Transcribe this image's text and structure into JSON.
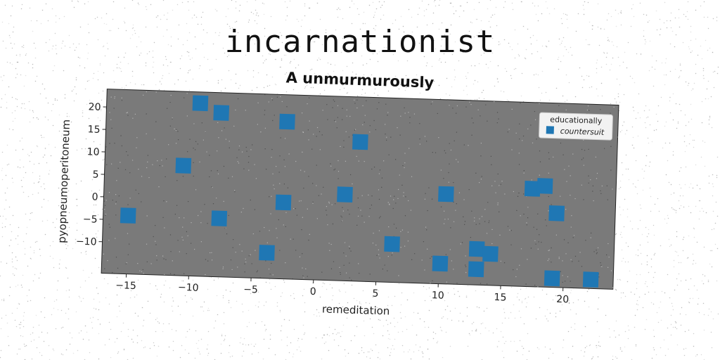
{
  "chart_data": {
    "type": "scatter",
    "title": "incarnationist",
    "subtitle": "A unmurmurously",
    "xlabel": "remeditation",
    "ylabel": "pyopneumoperitoneum",
    "xlim": [
      -17,
      24
    ],
    "ylim": [
      -17,
      24
    ],
    "xticks": [
      -15,
      -10,
      -5,
      0,
      5,
      10,
      15,
      20
    ],
    "yticks": [
      -10,
      -5,
      0,
      5,
      10,
      15,
      20
    ],
    "grid": false,
    "background_color": "#7a7a7a",
    "legend": {
      "title": "educationally",
      "placement": "top-right"
    },
    "series": [
      {
        "name": "countersuit",
        "color": "#1f77b4",
        "marker": "square",
        "points": [
          {
            "x": -15.0,
            "y": -4.0
          },
          {
            "x": -10.7,
            "y": 7.5
          },
          {
            "x": -9.5,
            "y": 21.5
          },
          {
            "x": -7.8,
            "y": 19.5
          },
          {
            "x": -7.7,
            "y": -4.0
          },
          {
            "x": -3.8,
            "y": -11.3
          },
          {
            "x": -2.6,
            "y": 0.0
          },
          {
            "x": -2.5,
            "y": 18.0
          },
          {
            "x": 2.3,
            "y": 2.2
          },
          {
            "x": 3.4,
            "y": 14.0
          },
          {
            "x": 6.2,
            "y": -8.5
          },
          {
            "x": 10.1,
            "y": -12.5
          },
          {
            "x": 10.4,
            "y": 3.0
          },
          {
            "x": 13.0,
            "y": -9.0
          },
          {
            "x": 13.0,
            "y": -13.5
          },
          {
            "x": 14.1,
            "y": -10.0
          },
          {
            "x": 17.3,
            "y": 4.8
          },
          {
            "x": 18.3,
            "y": 5.5
          },
          {
            "x": 19.1,
            "y": -15.0
          },
          {
            "x": 19.3,
            "y": -0.5
          },
          {
            "x": 22.2,
            "y": -15.0
          }
        ]
      }
    ]
  }
}
